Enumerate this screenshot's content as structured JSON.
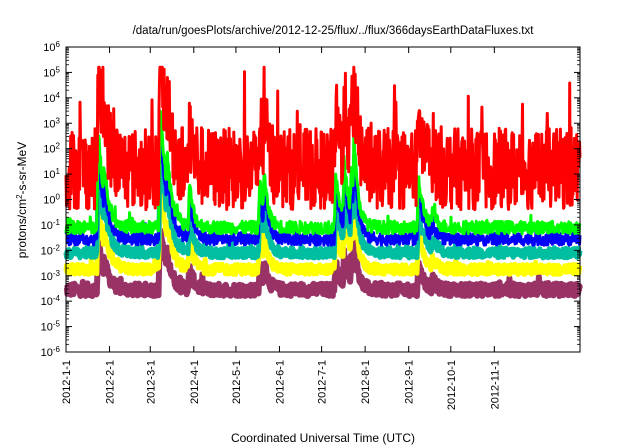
{
  "chart_data": {
    "type": "line",
    "title": "/data/run/goesPlots/archive/2012-12-25/flux/../flux/366daysEarthDataFluxes.txt",
    "xlabel": "Coordinated Universal Time (UTC)",
    "ylabel": "protons/cm2-s-sr-MeV",
    "ylabel_parts": {
      "base": "protons/cm",
      "sup": "2",
      "rest": "-s-sr-MeV"
    },
    "y_scale": "log",
    "ylim_exponents": [
      -6,
      6
    ],
    "y_ticks": [
      {
        "base": "10",
        "exp": "-6",
        "value": -6
      },
      {
        "base": "10",
        "exp": "-5",
        "value": -5
      },
      {
        "base": "10",
        "exp": "-4",
        "value": -4
      },
      {
        "base": "10",
        "exp": "-3",
        "value": -3
      },
      {
        "base": "10",
        "exp": "-2",
        "value": -2
      },
      {
        "base": "10",
        "exp": "-1",
        "value": -1
      },
      {
        "base": "10",
        "exp": "0",
        "value": 0
      },
      {
        "base": "10",
        "exp": "1",
        "value": 1
      },
      {
        "base": "10",
        "exp": "2",
        "value": 2
      },
      {
        "base": "10",
        "exp": "3",
        "value": 3
      },
      {
        "base": "10",
        "exp": "4",
        "value": 4
      },
      {
        "base": "10",
        "exp": "5",
        "value": 5
      },
      {
        "base": "10",
        "exp": "6",
        "value": 6
      }
    ],
    "xlim_days": [
      0,
      366
    ],
    "x_ticks": [
      {
        "label": "2012-1-1",
        "day": 0
      },
      {
        "label": "2012-2-1",
        "day": 31
      },
      {
        "label": "2012-3-1",
        "day": 60
      },
      {
        "label": "2012-4-1",
        "day": 91
      },
      {
        "label": "2012-5-1",
        "day": 121
      },
      {
        "label": "2012-6-1",
        "day": 152
      },
      {
        "label": "2012-7-1",
        "day": 182
      },
      {
        "label": "2012-8-1",
        "day": 213
      },
      {
        "label": "2012-9-1",
        "day": 244
      },
      {
        "label": "2012-10-1",
        "day": 274
      },
      {
        "label": "2012-11-1",
        "day": 305
      }
    ],
    "events": [
      {
        "day": 23,
        "peak": 4.0,
        "width": 4
      },
      {
        "day": 27,
        "peak": 2.5,
        "width": 4
      },
      {
        "day": 67,
        "peak": 5.0,
        "width": 5
      },
      {
        "day": 72,
        "peak": 3.0,
        "width": 4
      },
      {
        "day": 88,
        "peak": 1.8,
        "width": 3
      },
      {
        "day": 138,
        "peak": 2.0,
        "width": 3
      },
      {
        "day": 141,
        "peak": 2.3,
        "width": 3
      },
      {
        "day": 192,
        "peak": 2.0,
        "width": 5
      },
      {
        "day": 198,
        "peak": 2.8,
        "width": 4
      },
      {
        "day": 203,
        "peak": 2.5,
        "width": 4
      },
      {
        "day": 205,
        "peak": 3.9,
        "width": 3
      },
      {
        "day": 251,
        "peak": 2.0,
        "width": 4
      },
      {
        "day": 261,
        "peak": 0.8,
        "width": 3
      }
    ],
    "series": [
      {
        "color": "#ff0000",
        "base": 1.2,
        "noise": 1.6,
        "sensitivity": 1.0,
        "floor": -1.5
      },
      {
        "color": "#00ff00",
        "base": -1.1,
        "noise": 0.25,
        "sensitivity": 0.95,
        "floor": -1.6
      },
      {
        "color": "#0000ff",
        "base": -1.55,
        "noise": 0.25,
        "sensitivity": 0.9,
        "floor": -2.0
      },
      {
        "color": "#00bfa0",
        "base": -2.1,
        "noise": 0.2,
        "sensitivity": 0.85,
        "floor": -2.5
      },
      {
        "color": "#ffff00",
        "base": -2.75,
        "noise": 0.2,
        "sensitivity": 0.7,
        "floor": -3.1
      },
      {
        "color": "#993366",
        "base": -3.55,
        "noise": 0.25,
        "sensitivity": 0.5,
        "floor": -4.3
      }
    ],
    "grid": false,
    "legend": "none"
  }
}
